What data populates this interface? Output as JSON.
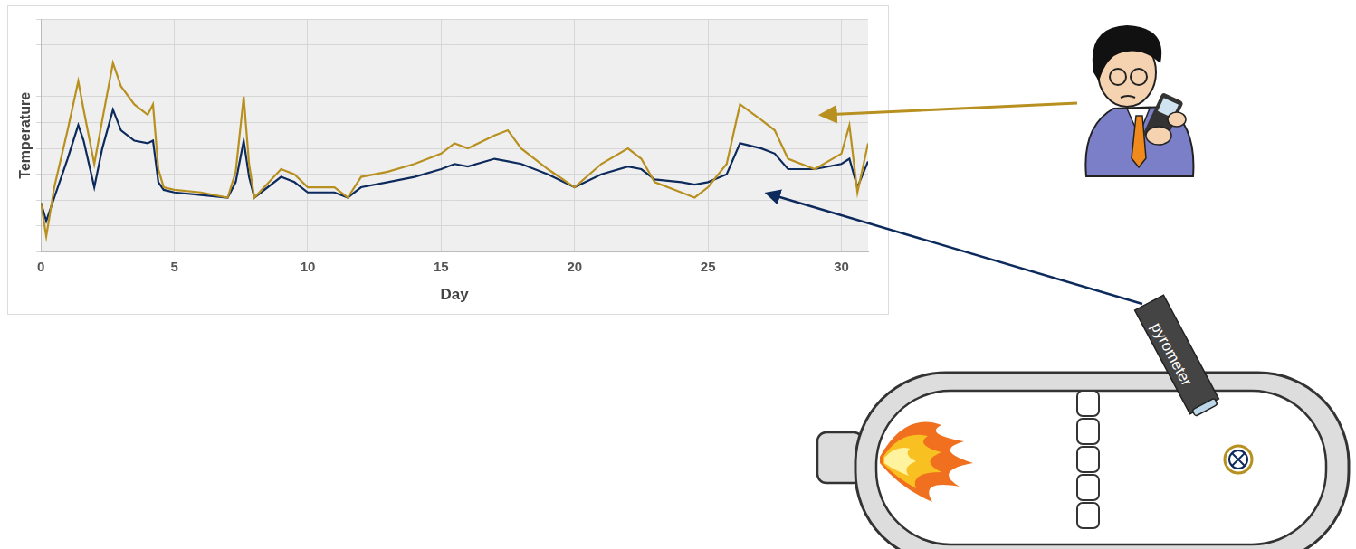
{
  "chart_data": {
    "type": "line",
    "x_label": "Day",
    "y_label": "Temperature",
    "x": [
      0,
      0.2,
      0.5,
      1,
      1.4,
      1.6,
      2,
      2.3,
      2.7,
      3,
      3.5,
      4,
      4.2,
      4.4,
      4.6,
      5,
      6,
      7,
      7.3,
      7.6,
      7.8,
      8,
      9,
      9.5,
      10,
      11,
      11.5,
      12,
      13,
      14,
      15,
      15.5,
      16,
      17,
      17.5,
      18,
      19,
      20,
      21,
      22,
      22.5,
      23,
      24,
      24.5,
      25,
      25.7,
      26.2,
      27,
      27.5,
      28,
      29,
      30,
      30.3,
      30.6,
      31
    ],
    "series": [
      {
        "color": "#b8901f",
        "values": [
          1.9,
          0.6,
          2.5,
          4.7,
          6.6,
          5.5,
          3.4,
          5.1,
          7.3,
          6.4,
          5.7,
          5.3,
          5.7,
          3.2,
          2.5,
          2.4,
          2.3,
          2.1,
          3.1,
          6.0,
          3.4,
          2.1,
          3.2,
          3.0,
          2.5,
          2.5,
          2.1,
          2.9,
          3.1,
          3.4,
          3.8,
          4.2,
          4.0,
          4.5,
          4.7,
          4.0,
          3.2,
          2.5,
          3.4,
          4.0,
          3.6,
          2.7,
          2.3,
          2.1,
          2.5,
          3.4,
          5.7,
          5.1,
          4.7,
          3.6,
          3.2,
          3.8,
          4.9,
          2.3,
          4.2
        ]
      },
      {
        "color": "#0d2a5c",
        "values": [
          1.9,
          1.2,
          2.1,
          3.6,
          4.9,
          4.3,
          2.5,
          4.0,
          5.5,
          4.7,
          4.3,
          4.2,
          4.3,
          2.7,
          2.4,
          2.3,
          2.2,
          2.1,
          2.7,
          4.3,
          2.9,
          2.1,
          2.9,
          2.7,
          2.3,
          2.3,
          2.1,
          2.5,
          2.7,
          2.9,
          3.2,
          3.4,
          3.3,
          3.6,
          3.5,
          3.4,
          3.0,
          2.5,
          3.0,
          3.3,
          3.2,
          2.8,
          2.7,
          2.6,
          2.7,
          3.0,
          4.2,
          4.0,
          3.8,
          3.2,
          3.2,
          3.4,
          3.6,
          2.5,
          3.5
        ]
      }
    ],
    "xlim": [
      0,
      31
    ],
    "xticks": [
      0,
      5,
      10,
      15,
      20,
      25,
      30
    ],
    "ylim": [
      0,
      9
    ],
    "yticks": [
      0,
      1,
      2,
      3,
      4,
      5,
      6,
      7,
      8,
      9
    ],
    "grid": true,
    "tick_labels": "x"
  },
  "diagram": {
    "instrument_label": "pyrometer"
  }
}
